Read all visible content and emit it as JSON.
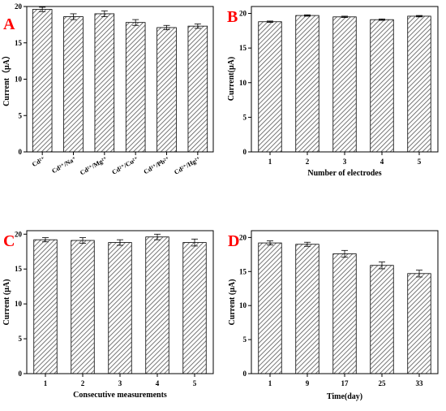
{
  "colors": {
    "panel_letter": "#ff0000",
    "bar_fill": "#ffffff",
    "bar_hatch": "#555555",
    "axis": "#000000"
  },
  "chart_data": [
    {
      "type": "bar",
      "panel_label": "A",
      "categories": [
        "Cd²⁺",
        "Cd²⁺/Na⁺",
        "Cd²⁺/Mg²⁺",
        "Cd²⁺/Cu²⁺",
        "Cd²⁺/Pb²⁺",
        "Cd²⁺/Hg²⁺"
      ],
      "values": [
        19.6,
        18.6,
        19.0,
        17.8,
        17.1,
        17.3
      ],
      "errors": [
        0.3,
        0.4,
        0.4,
        0.4,
        0.3,
        0.3
      ],
      "title": "",
      "xlabel": "",
      "ylabel": "Current（μA）",
      "ylim": [
        0,
        20
      ],
      "yticks": [
        0,
        5,
        10,
        15,
        20
      ],
      "hatch": "diagonal",
      "grid": false
    },
    {
      "type": "bar",
      "panel_label": "B",
      "categories": [
        "1",
        "2",
        "3",
        "4",
        "5"
      ],
      "values": [
        18.8,
        19.7,
        19.5,
        19.1,
        19.6
      ],
      "errors": [
        0.1,
        0.1,
        0.1,
        0.1,
        0.1
      ],
      "title": "",
      "xlabel": "Number of electrodes",
      "ylabel": "Current(μA)",
      "ylim": [
        0,
        21
      ],
      "yticks": [
        0,
        5,
        10,
        15,
        20
      ],
      "hatch": "diagonal",
      "grid": false
    },
    {
      "type": "bar",
      "panel_label": "C",
      "categories": [
        "1",
        "2",
        "3",
        "4",
        "5"
      ],
      "values": [
        19.2,
        19.1,
        18.8,
        19.6,
        18.8
      ],
      "errors": [
        0.3,
        0.4,
        0.4,
        0.4,
        0.5
      ],
      "title": "",
      "xlabel": "Consecutive measurements",
      "ylabel": "Current (μA)",
      "ylim": [
        0,
        20.5
      ],
      "yticks": [
        0,
        5,
        10,
        15,
        20
      ],
      "hatch": "diagonal",
      "grid": false
    },
    {
      "type": "bar",
      "panel_label": "D",
      "categories": [
        "1",
        "9",
        "17",
        "25",
        "33"
      ],
      "values": [
        19.2,
        19.0,
        17.6,
        15.9,
        14.7
      ],
      "errors": [
        0.3,
        0.3,
        0.5,
        0.5,
        0.5
      ],
      "title": "",
      "xlabel": "Time(day)",
      "ylabel": "Current (μA)",
      "ylim": [
        0,
        21
      ],
      "yticks": [
        0,
        5,
        10,
        15,
        20
      ],
      "hatch": "diagonal",
      "grid": false
    }
  ]
}
